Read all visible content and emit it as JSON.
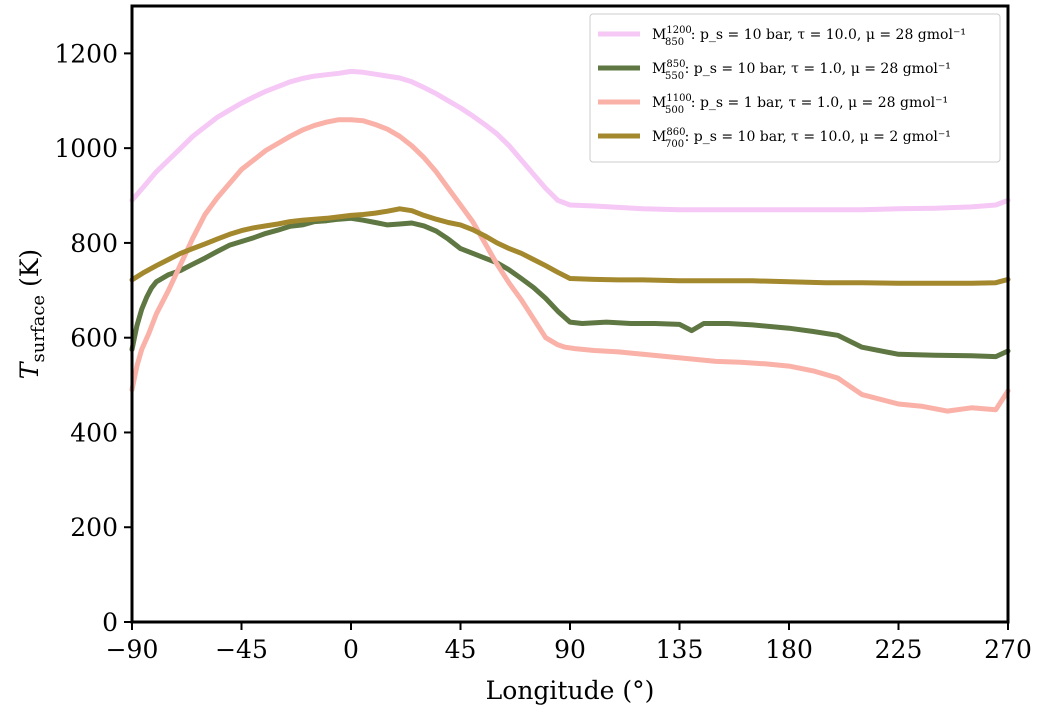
{
  "chart_data": {
    "type": "line",
    "xlabel": "Longitude (°)",
    "ylabel": "T_surface (K)",
    "ylabel_main": "T",
    "ylabel_sub": "surface",
    "ylabel_unit": " (K)",
    "xlim": [
      -90,
      270
    ],
    "ylim": [
      0,
      1300
    ],
    "xticks": [
      -90,
      -45,
      0,
      45,
      90,
      135,
      180,
      225,
      270
    ],
    "xtick_labels": [
      "−90",
      "−45",
      "0",
      "45",
      "90",
      "135",
      "180",
      "225",
      "270"
    ],
    "yticks": [
      0,
      200,
      400,
      600,
      800,
      1000,
      1200
    ],
    "ytick_labels": [
      "0",
      "200",
      "400",
      "600",
      "800",
      "1000",
      "1200"
    ],
    "grid": false,
    "legend_position": "top-right",
    "series": [
      {
        "name": "M^1200_850: p_s = 10 bar, τ = 10.0, μ = 28 gmol^−1",
        "label_base": "M",
        "label_sup": "1200",
        "label_sub": "850",
        "label_rest": ": p_s = 10 bar, τ = 10.0, μ = 28 gmol⁻¹",
        "color": "#f5c8f5",
        "x": [
          -90,
          -85,
          -80,
          -75,
          -70,
          -65,
          -60,
          -55,
          -50,
          -45,
          -40,
          -35,
          -30,
          -25,
          -20,
          -15,
          -10,
          -5,
          0,
          5,
          10,
          15,
          20,
          25,
          30,
          35,
          40,
          45,
          50,
          55,
          60,
          65,
          70,
          75,
          80,
          85,
          90,
          100,
          110,
          120,
          135,
          150,
          165,
          180,
          195,
          210,
          225,
          240,
          255,
          265,
          270
        ],
        "y": [
          890,
          920,
          950,
          975,
          1000,
          1025,
          1045,
          1065,
          1080,
          1095,
          1108,
          1120,
          1130,
          1140,
          1147,
          1152,
          1155,
          1158,
          1162,
          1160,
          1156,
          1152,
          1148,
          1140,
          1128,
          1115,
          1100,
          1085,
          1068,
          1050,
          1030,
          1005,
          975,
          945,
          915,
          890,
          880,
          878,
          875,
          872,
          870,
          870,
          870,
          870,
          870,
          870,
          872,
          873,
          876,
          880,
          890
        ]
      },
      {
        "name": "M^850_550: p_s = 10 bar, τ = 1.0, μ = 28 gmol^−1",
        "label_base": "M",
        "label_sup": "850",
        "label_sub": "550",
        "label_rest": ": p_s = 10 bar, τ = 1.0, μ = 28 gmol⁻¹",
        "color": "#5f7742",
        "x": [
          -90,
          -88,
          -86,
          -84,
          -82,
          -80,
          -75,
          -70,
          -65,
          -60,
          -55,
          -50,
          -45,
          -40,
          -35,
          -30,
          -25,
          -20,
          -15,
          -10,
          -5,
          0,
          5,
          10,
          15,
          20,
          25,
          30,
          35,
          40,
          45,
          50,
          55,
          60,
          65,
          70,
          75,
          80,
          85,
          90,
          95,
          105,
          115,
          125,
          135,
          140,
          145,
          155,
          165,
          180,
          190,
          200,
          210,
          225,
          240,
          255,
          265,
          270
        ],
        "y": [
          575,
          625,
          660,
          685,
          705,
          718,
          733,
          742,
          755,
          768,
          782,
          795,
          803,
          811,
          820,
          827,
          835,
          838,
          845,
          847,
          850,
          852,
          848,
          843,
          838,
          840,
          842,
          836,
          825,
          808,
          788,
          778,
          768,
          758,
          743,
          725,
          706,
          683,
          656,
          633,
          630,
          633,
          630,
          630,
          628,
          615,
          630,
          630,
          627,
          620,
          613,
          605,
          580,
          565,
          563,
          562,
          560,
          572
        ]
      },
      {
        "name": "M^1100_500: p_s = 1 bar, τ = 1.0, μ = 28 gmol^−1",
        "label_base": "M",
        "label_sup": "1100",
        "label_sub": "500",
        "label_rest": ": p_s = 1 bar, τ = 1.0, μ = 28 gmol⁻¹",
        "color": "#f9b1a8",
        "x": [
          -90,
          -88,
          -86,
          -83,
          -80,
          -75,
          -70,
          -65,
          -60,
          -55,
          -50,
          -45,
          -40,
          -35,
          -30,
          -25,
          -20,
          -15,
          -10,
          -5,
          0,
          5,
          10,
          15,
          20,
          25,
          30,
          35,
          40,
          45,
          50,
          55,
          60,
          65,
          70,
          75,
          80,
          85,
          88,
          92,
          100,
          110,
          120,
          130,
          140,
          150,
          160,
          170,
          180,
          190,
          200,
          210,
          225,
          235,
          245,
          255,
          265,
          270
        ],
        "y": [
          490,
          540,
          575,
          610,
          650,
          700,
          755,
          810,
          860,
          895,
          925,
          955,
          975,
          995,
          1010,
          1025,
          1038,
          1048,
          1055,
          1060,
          1060,
          1058,
          1050,
          1040,
          1025,
          1005,
          980,
          950,
          915,
          880,
          845,
          800,
          755,
          715,
          680,
          640,
          600,
          585,
          580,
          577,
          573,
          570,
          565,
          560,
          555,
          550,
          548,
          545,
          540,
          530,
          515,
          480,
          460,
          455,
          445,
          452,
          448,
          488
        ]
      },
      {
        "name": "M^860_700: p_s = 10 bar, τ = 10.0, μ = 2 gmol^−1",
        "label_base": "M",
        "label_sup": "860",
        "label_sub": "700",
        "label_rest": ": p_s = 10 bar, τ = 10.0, μ = 2 gmol⁻¹",
        "color": "#a3882d",
        "x": [
          -90,
          -85,
          -80,
          -75,
          -70,
          -65,
          -60,
          -55,
          -50,
          -45,
          -40,
          -35,
          -30,
          -25,
          -20,
          -15,
          -10,
          -5,
          0,
          5,
          10,
          15,
          20,
          25,
          30,
          35,
          40,
          45,
          50,
          55,
          60,
          65,
          70,
          75,
          80,
          85,
          90,
          100,
          110,
          120,
          135,
          150,
          165,
          180,
          195,
          210,
          225,
          240,
          255,
          265,
          270
        ],
        "y": [
          722,
          738,
          752,
          765,
          778,
          788,
          798,
          808,
          818,
          826,
          832,
          836,
          840,
          845,
          848,
          850,
          852,
          855,
          858,
          860,
          863,
          867,
          872,
          868,
          858,
          850,
          843,
          838,
          828,
          815,
          800,
          788,
          778,
          765,
          752,
          738,
          725,
          723,
          722,
          722,
          720,
          720,
          720,
          718,
          716,
          716,
          715,
          715,
          715,
          716,
          723
        ]
      }
    ]
  }
}
